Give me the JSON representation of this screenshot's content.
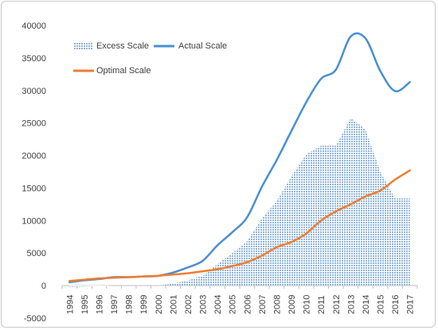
{
  "chart_data": {
    "type": "line",
    "title": "",
    "xlabel": "",
    "ylabel": "",
    "ylim": [
      -5000,
      40000
    ],
    "y_ticks": [
      -5000,
      0,
      5000,
      10000,
      15000,
      20000,
      25000,
      30000,
      35000,
      40000
    ],
    "grid": false,
    "legend_placement": "top-left",
    "categories": [
      "1994",
      "1995",
      "1996",
      "1997",
      "1998",
      "1999",
      "2000",
      "2001",
      "2002",
      "2003",
      "2004",
      "2005",
      "2006",
      "2007",
      "2008",
      "2009",
      "2010",
      "2011",
      "2012",
      "2013",
      "2014",
      "2015",
      "2016",
      "2017"
    ],
    "series": [
      {
        "name": "Excess Scale",
        "kind": "area",
        "color": "#8fb4d9",
        "values": [
          -200,
          -150,
          -100,
          0,
          0,
          0,
          0,
          300,
          800,
          1500,
          3300,
          5000,
          6800,
          10300,
          13000,
          16800,
          20200,
          21500,
          21500,
          25800,
          24000,
          17500,
          13400,
          13400
        ]
      },
      {
        "name": "Actual Scale",
        "kind": "line",
        "color": "#4a8fd0",
        "values": [
          500,
          800,
          1000,
          1300,
          1300,
          1400,
          1500,
          2000,
          2800,
          3800,
          6200,
          8200,
          10500,
          15200,
          19300,
          23800,
          28200,
          31800,
          33200,
          38300,
          38000,
          33000,
          29900,
          31300
        ]
      },
      {
        "name": "Optimal Scale",
        "kind": "line",
        "color": "#ed7d31",
        "values": [
          700,
          900,
          1100,
          1200,
          1300,
          1400,
          1500,
          1700,
          1900,
          2200,
          2500,
          3000,
          3600,
          4600,
          5900,
          6700,
          8000,
          10000,
          11400,
          12500,
          13700,
          14600,
          16300,
          17700
        ]
      }
    ]
  }
}
